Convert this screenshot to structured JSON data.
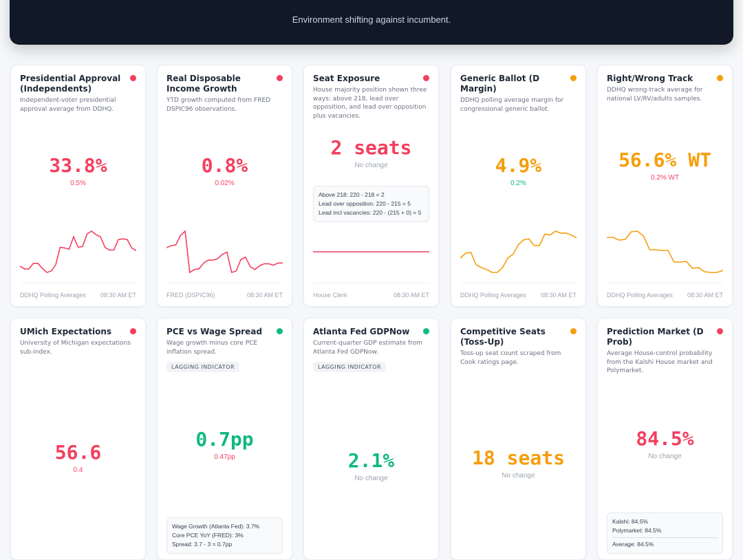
{
  "header": {
    "subtitle": "Environment shifting against incumbent."
  },
  "colors": {
    "red": "#f43f5e",
    "orange": "#f59e0b",
    "green": "#10b981"
  },
  "cards": [
    {
      "title": "Presidential Approval (Independents)",
      "description": "Independent-voter presidential approval average from DDHQ.",
      "status": "red",
      "value": "33.8%",
      "value_color": "red",
      "delta": "0.5%",
      "delta_color": "red",
      "source": "DDHQ Polling Averages",
      "time": "08:30 AM ET",
      "spark": [
        18,
        14,
        14,
        22,
        22,
        15,
        9,
        11,
        20,
        45,
        44,
        42,
        60,
        45,
        46,
        64,
        68,
        63,
        60,
        45,
        41,
        41,
        56,
        57,
        56,
        44,
        40
      ]
    },
    {
      "title": "Real Disposable Income Growth",
      "description": "YTD growth computed from FRED DSPIC96 observations.",
      "status": "red",
      "value": "0.8%",
      "value_color": "red",
      "delta": "0.02%",
      "delta_color": "red",
      "source": "FRED (DSPIC96)",
      "time": "08:30 AM ET",
      "spark": [
        36,
        39,
        40,
        53,
        59,
        2,
        6,
        7,
        15,
        19,
        19,
        21,
        27,
        30,
        2,
        4,
        20,
        23,
        10,
        6,
        11,
        14,
        14,
        12,
        15,
        15
      ]
    },
    {
      "title": "Seat Exposure",
      "description": "House majority position shown three ways: above 218, lead over opposition, and lead over opposition plus vacancies.",
      "status": "red",
      "value": "2 seats",
      "value_color": "red",
      "delta": "No change",
      "delta_color": "gray",
      "details": [
        "Above 218: 220 - 218 = 2",
        "Lead over opposition: 220 - 215 = 5",
        "Lead incl vacancies: 220 - (215 + 0) = 5"
      ],
      "source": "House Clerk",
      "time": "08:30 AM ET",
      "spark": [
        5,
        5
      ]
    },
    {
      "title": "Generic Ballot (D Margin)",
      "description": "DDHQ polling average margin for congressional generic ballot.",
      "status": "orange",
      "value": "4.9%",
      "value_color": "orange",
      "delta": "0.2%",
      "delta_color": "green",
      "source": "DDHQ Polling Averages",
      "time": "08:30 AM ET",
      "spark": [
        30,
        35,
        36,
        23,
        20,
        18,
        15,
        15,
        20,
        30,
        34,
        44,
        49,
        50,
        43,
        43,
        55,
        54,
        58,
        56,
        56,
        54,
        51
      ]
    },
    {
      "title": "Right/Wrong Track",
      "description": "DDHQ wrong-track average for national LV/RV/adults samples.",
      "status": "orange",
      "value": "56.6% WT",
      "value_color": "orange",
      "delta": "0.2% WT",
      "delta_color": "red",
      "source": "DDHQ Polling Averages",
      "time": "08:30 AM ET",
      "spark": [
        58,
        58,
        54,
        55,
        66,
        67,
        60,
        40,
        40,
        39,
        39,
        22,
        22,
        23,
        13,
        14,
        8,
        7,
        7,
        10
      ]
    },
    {
      "title": "UMich Expectations",
      "description": "University of Michigan expectations sub-index.",
      "status": "red",
      "value": "56.6",
      "value_color": "red",
      "delta": "0.4",
      "delta_color": "red"
    },
    {
      "title": "PCE vs Wage Spread",
      "description": "Wage growth minus core PCE inflation spread.",
      "status": "green",
      "badge": "LAGGING INDICATOR",
      "value": "0.7pp",
      "value_color": "green",
      "delta": "0.47pp",
      "delta_color": "red",
      "details": [
        "Wage Growth (Atlanta Fed): 3.7%",
        "Core PCE YoY (FRED): 3%",
        "Spread: 3.7 - 3 = 0.7pp"
      ]
    },
    {
      "title": "Atlanta Fed GDPNow",
      "description": "Current-quarter GDP estimate from Atlanta Fed GDPNow.",
      "status": "green",
      "badge": "LAGGING INDICATOR",
      "value": "2.1%",
      "value_color": "green",
      "delta": "No change",
      "delta_color": "gray"
    },
    {
      "title": "Competitive Seats (Toss-Up)",
      "description": "Toss-up seat count scraped from Cook ratings page.",
      "status": "orange",
      "value": "18 seats",
      "value_color": "orange",
      "delta": "No change",
      "delta_color": "gray"
    },
    {
      "title": "Prediction Market (D Prob)",
      "description": "Average House-control probability from the Kalshi House market and Polymarket.",
      "status": "red",
      "value": "84.5%",
      "value_color": "red",
      "delta": "No change",
      "delta_color": "gray",
      "details": [
        "Kalshi: 84.5%",
        "Polymarket: 84.5%"
      ],
      "details_total": "Average: 84.5%"
    }
  ]
}
